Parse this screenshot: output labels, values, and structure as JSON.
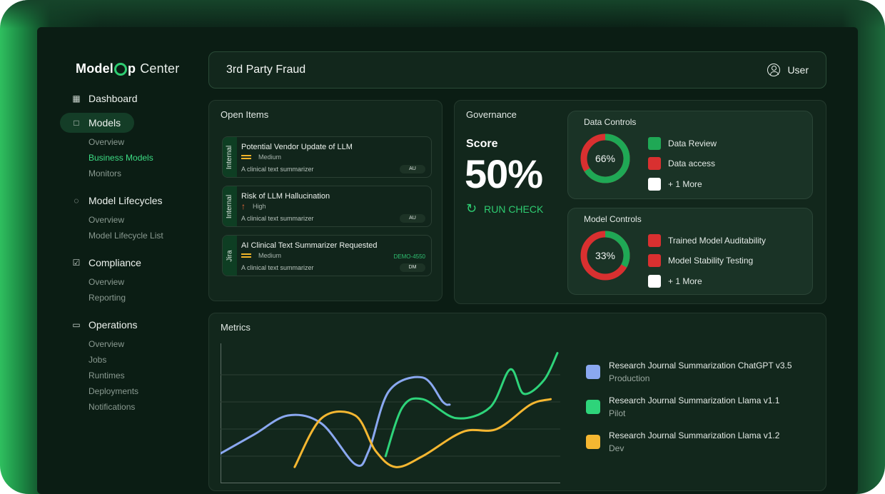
{
  "app": {
    "logo_model": "Model",
    "logo_p": "p",
    "logo_center": "Center"
  },
  "sidebar": {
    "sections": [
      {
        "label": "Dashboard",
        "icon": "grid-icon",
        "active": false,
        "children": []
      },
      {
        "label": "Models",
        "icon": "folder-icon",
        "active": true,
        "children": [
          {
            "label": "Overview",
            "active": false
          },
          {
            "label": "Business Models",
            "active": true
          },
          {
            "label": "Monitors",
            "active": false
          }
        ]
      },
      {
        "label": "Model Lifecycles",
        "icon": "lifecycle-icon",
        "active": false,
        "children": [
          {
            "label": "Overview",
            "active": false
          },
          {
            "label": "Model Lifecycle List",
            "active": false
          }
        ]
      },
      {
        "label": "Compliance",
        "icon": "document-check-icon",
        "active": false,
        "children": [
          {
            "label": "Overview",
            "active": false
          },
          {
            "label": "Reporting",
            "active": false
          }
        ]
      },
      {
        "label": "Operations",
        "icon": "briefcase-icon",
        "active": false,
        "children": [
          {
            "label": "Overview",
            "active": false
          },
          {
            "label": "Jobs",
            "active": false
          },
          {
            "label": "Runtimes",
            "active": false
          },
          {
            "label": "Deployments",
            "active": false
          },
          {
            "label": "Notifications",
            "active": false
          }
        ]
      }
    ]
  },
  "header": {
    "title": "3rd Party Fraud",
    "user_label": "User"
  },
  "open_items": {
    "title": "Open Items",
    "items": [
      {
        "tag": "Internal",
        "title": "Potential Vendor Update of LLM",
        "priority": "Medium",
        "description": "A clinical text summarizer",
        "badge": "AU",
        "ref": ""
      },
      {
        "tag": "Internal",
        "title": "Risk of LLM Hallucination",
        "priority": "High",
        "description": "A clinical text summarizer",
        "badge": "AU",
        "ref": ""
      },
      {
        "tag": "Jira",
        "title": "AI Clinical Text Summarizer Requested",
        "priority": "Medium",
        "description": "A clinical text summarizer",
        "badge": "DM",
        "ref": "DEMO-4550"
      }
    ]
  },
  "governance": {
    "title": "Governance",
    "score_label": "Score",
    "score_value": "50%",
    "run_check_label": "RUN CHECK",
    "data_controls": {
      "title": "Data Controls",
      "percent_label": "66%",
      "percent": 66,
      "items": [
        {
          "label": "Data Review",
          "status": "pass"
        },
        {
          "label": "Data access",
          "status": "fail"
        },
        {
          "label": "+ 1 More",
          "status": "none"
        }
      ]
    },
    "model_controls": {
      "title": "Model Controls",
      "percent_label": "33%",
      "percent": 33,
      "items": [
        {
          "label": "Trained Model Auditability",
          "status": "fail"
        },
        {
          "label": "Model Stability Testing",
          "status": "fail"
        },
        {
          "label": "+ 1 More",
          "status": "none"
        }
      ]
    }
  },
  "colors": {
    "pass": "#1fa855",
    "fail": "#d93030",
    "none": "#ffffff",
    "accent": "#2ecc71"
  },
  "metrics": {
    "title": "Metrics",
    "legend": [
      {
        "name": "Research Journal Summarization ChatGPT v3.5",
        "sub": "Production",
        "color": "#8aa8f0"
      },
      {
        "name": "Research Journal Summarization Llama v1.1",
        "sub": "Pilot",
        "color": "#2ed47a"
      },
      {
        "name": "Research Journal Summarization Llama v1.2",
        "sub": "Dev",
        "color": "#f5b731"
      }
    ]
  },
  "chart_data": {
    "type": "line",
    "title": "",
    "xlabel": "",
    "ylabel": "",
    "grid": true,
    "ylim": [
      0,
      100
    ],
    "series": [
      {
        "name": "Research Journal Summarization ChatGPT v3.5",
        "color": "#8aa8f0",
        "x": [
          0,
          10,
          20,
          30,
          40,
          44,
          50,
          60,
          66,
          68
        ],
        "y": [
          22,
          36,
          50,
          44,
          14,
          24,
          68,
          78,
          60,
          58
        ]
      },
      {
        "name": "Research Journal Summarization Llama v1.1",
        "color": "#2ed47a",
        "x": [
          49,
          54,
          60,
          70,
          80,
          86,
          90,
          96,
          100
        ],
        "y": [
          20,
          56,
          62,
          48,
          56,
          84,
          66,
          76,
          96
        ]
      },
      {
        "name": "Research Journal Summarization Llama v1.2",
        "color": "#f5b731",
        "x": [
          22,
          30,
          40,
          46,
          52,
          60,
          72,
          82,
          92,
          98
        ],
        "y": [
          12,
          48,
          50,
          24,
          12,
          20,
          38,
          40,
          58,
          62
        ]
      }
    ]
  }
}
